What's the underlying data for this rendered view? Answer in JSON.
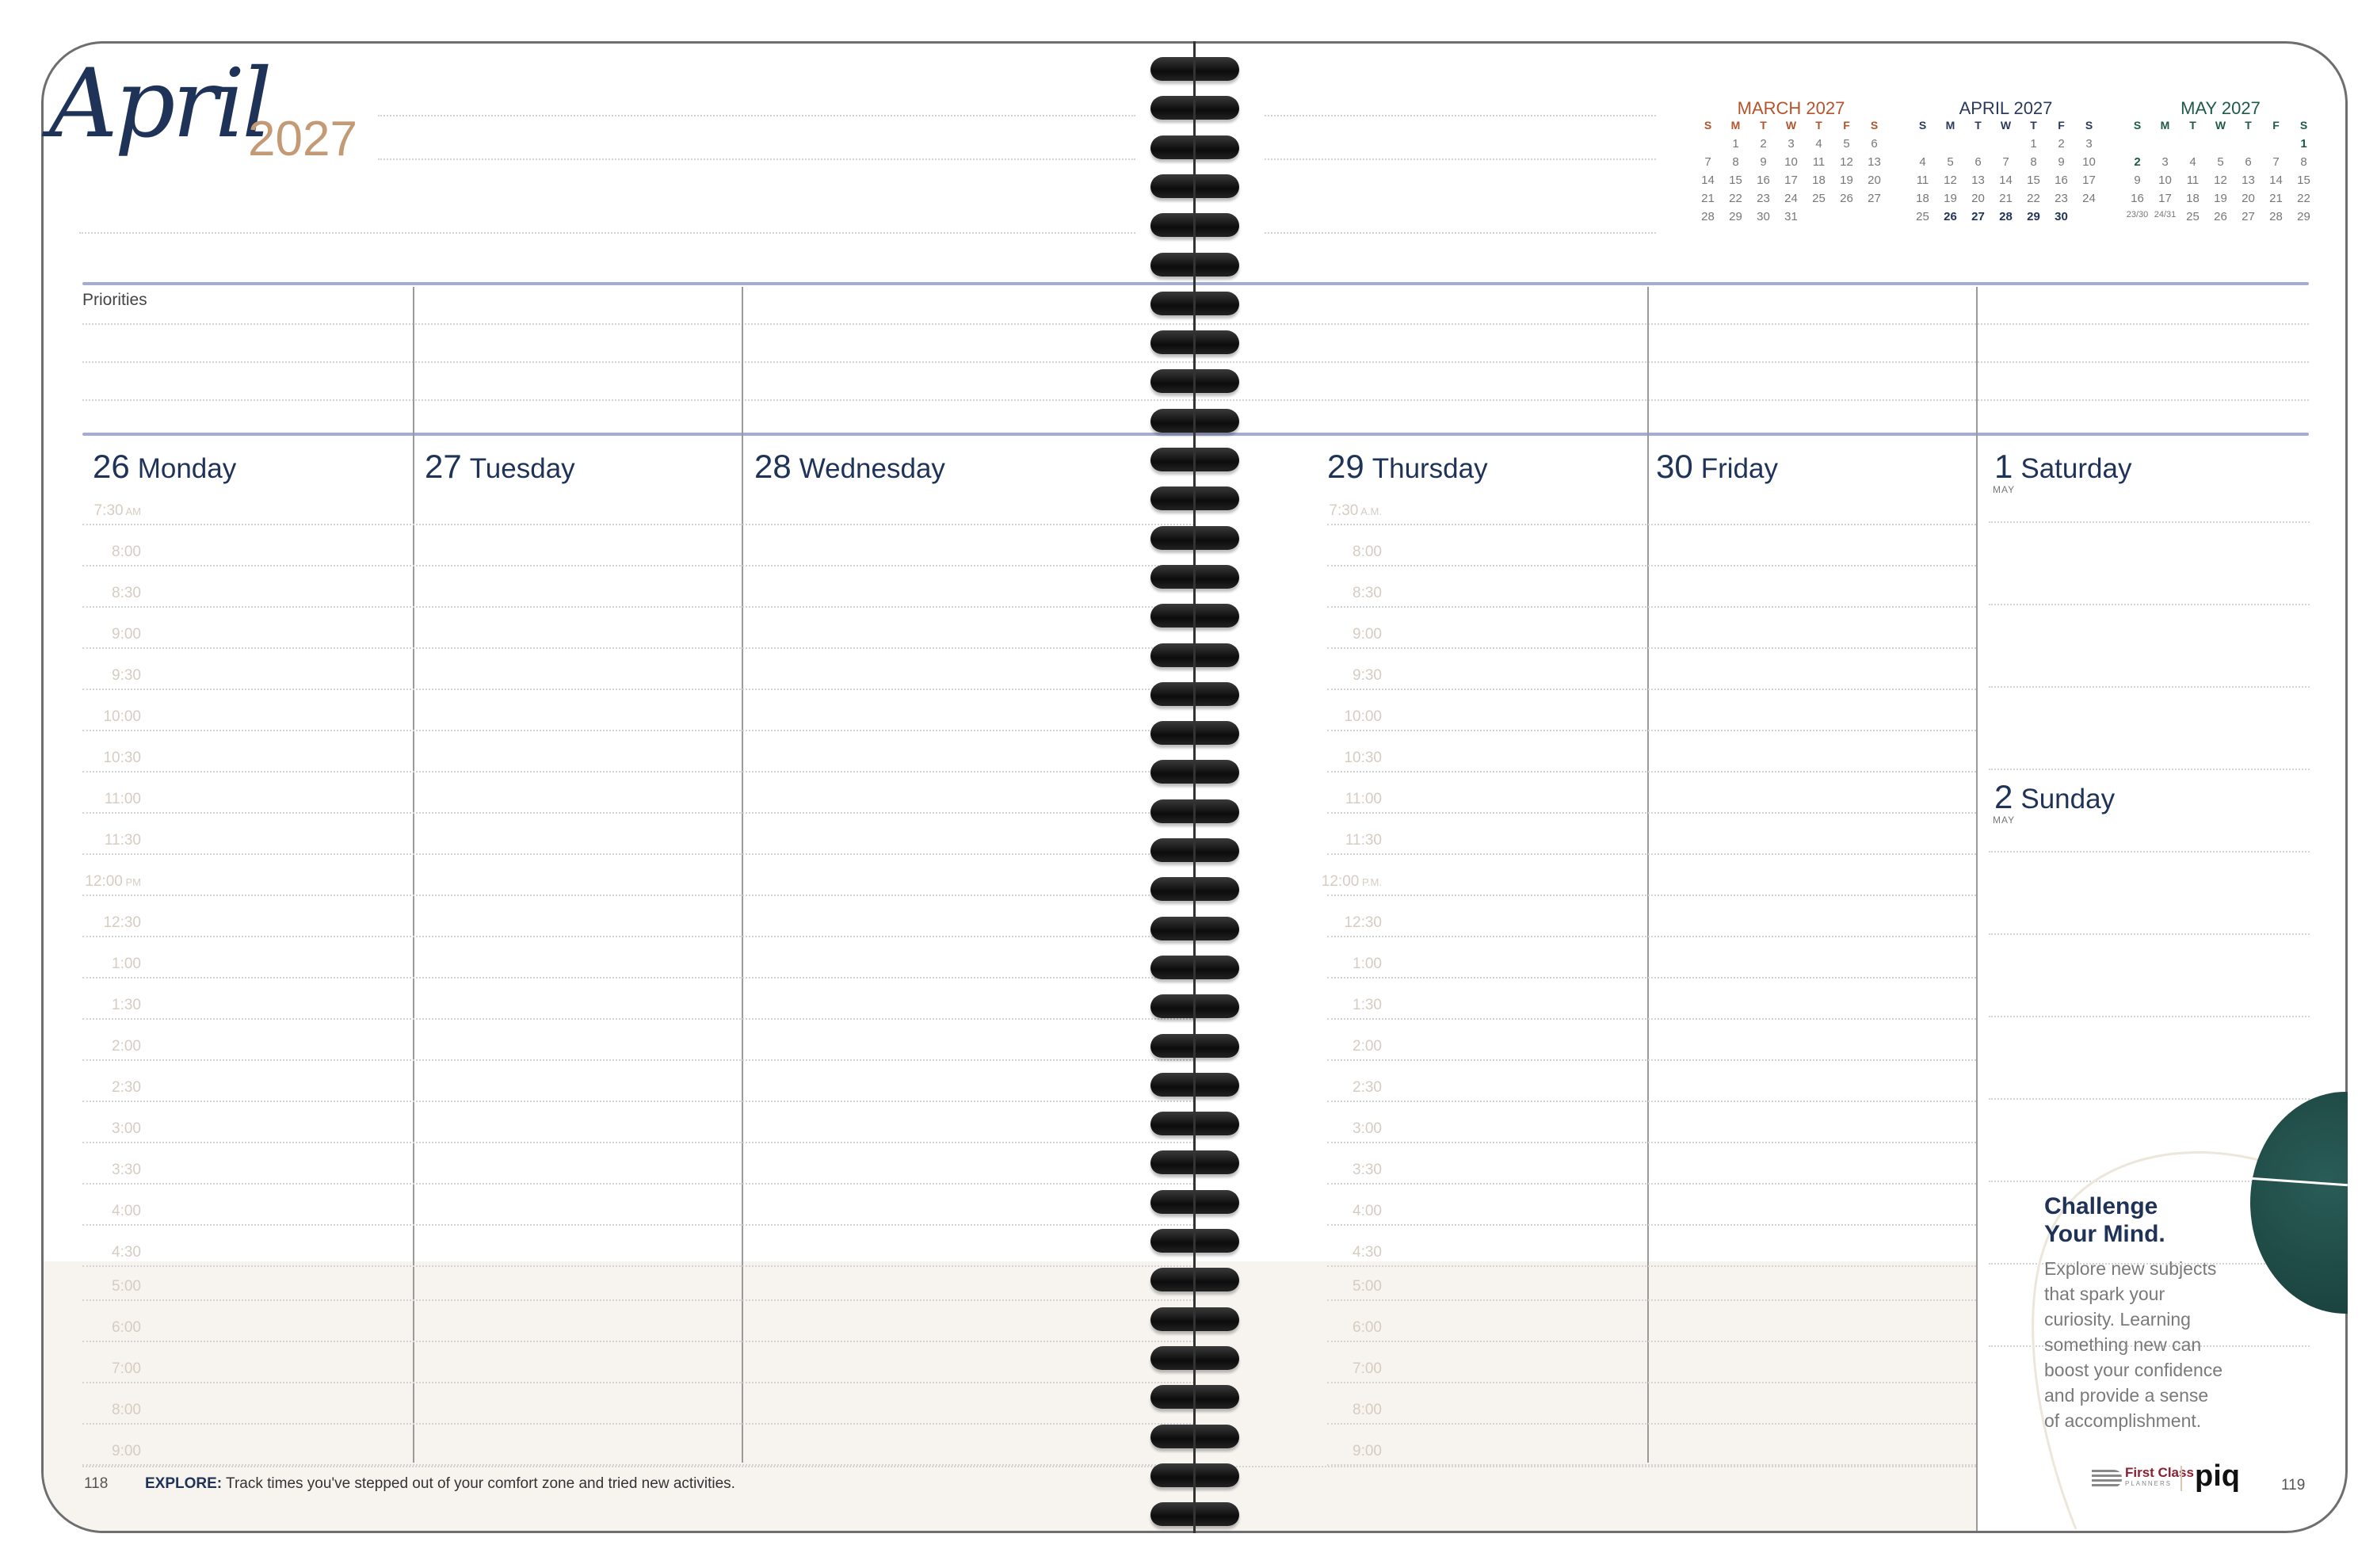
{
  "header": {
    "month_script": "April",
    "year": "2027"
  },
  "priorities_label": "Priorities",
  "mini_calendars": [
    {
      "title": "MARCH 2027",
      "color": "#b5532a",
      "weekdays": [
        "S",
        "M",
        "T",
        "W",
        "T",
        "F",
        "S"
      ],
      "weeks": [
        [
          "",
          "1",
          "2",
          "3",
          "4",
          "5",
          "6"
        ],
        [
          "7",
          "8",
          "9",
          "10",
          "11",
          "12",
          "13"
        ],
        [
          "14",
          "15",
          "16",
          "17",
          "18",
          "19",
          "20"
        ],
        [
          "21",
          "22",
          "23",
          "24",
          "25",
          "26",
          "27"
        ],
        [
          "28",
          "29",
          "30",
          "31",
          "",
          "",
          ""
        ]
      ],
      "bold": []
    },
    {
      "title": "APRIL 2027",
      "color": "#2a3a5e",
      "weekdays": [
        "S",
        "M",
        "T",
        "W",
        "T",
        "F",
        "S"
      ],
      "weeks": [
        [
          "",
          "",
          "",
          "",
          "1",
          "2",
          "3"
        ],
        [
          "4",
          "5",
          "6",
          "7",
          "8",
          "9",
          "10"
        ],
        [
          "11",
          "12",
          "13",
          "14",
          "15",
          "16",
          "17"
        ],
        [
          "18",
          "19",
          "20",
          "21",
          "22",
          "23",
          "24"
        ],
        [
          "25",
          "26",
          "27",
          "28",
          "29",
          "30",
          ""
        ]
      ],
      "bold": [
        "26",
        "27",
        "28",
        "29",
        "30"
      ]
    },
    {
      "title": "MAY 2027",
      "color": "#1e5a48",
      "weekdays": [
        "S",
        "M",
        "T",
        "W",
        "T",
        "F",
        "S"
      ],
      "weeks": [
        [
          "",
          "",
          "",
          "",
          "",
          "",
          "1"
        ],
        [
          "2",
          "3",
          "4",
          "5",
          "6",
          "7",
          "8"
        ],
        [
          "9",
          "10",
          "11",
          "12",
          "13",
          "14",
          "15"
        ],
        [
          "16",
          "17",
          "18",
          "19",
          "20",
          "21",
          "22"
        ],
        [
          "23/30",
          "24/31",
          "25",
          "26",
          "27",
          "28",
          "29"
        ]
      ],
      "bold": [
        "1",
        "2"
      ]
    }
  ],
  "days": [
    {
      "num": "26",
      "name": "Monday"
    },
    {
      "num": "27",
      "name": "Tuesday"
    },
    {
      "num": "28",
      "name": "Wednesday"
    },
    {
      "num": "29",
      "name": "Thursday"
    },
    {
      "num": "30",
      "name": "Friday"
    },
    {
      "num": "1",
      "name": "Saturday",
      "month": "MAY"
    },
    {
      "num": "2",
      "name": "Sunday",
      "month": "MAY"
    }
  ],
  "times_left": [
    "7:30|AM",
    "8:00",
    "8:30",
    "9:00",
    "9:30",
    "10:00",
    "10:30",
    "11:00",
    "11:30",
    "12:00|PM",
    "12:30",
    "1:00",
    "1:30",
    "2:00",
    "2:30",
    "3:00",
    "3:30",
    "4:00",
    "4:30",
    "5:00",
    "6:00",
    "7:00",
    "8:00",
    "9:00"
  ],
  "times_right": [
    "7:30|A.M.",
    "8:00",
    "8:30",
    "9:00",
    "9:30",
    "10:00",
    "10:30",
    "11:00",
    "11:30",
    "12:00|P.M.",
    "12:30",
    "1:00",
    "1:30",
    "2:00",
    "2:30",
    "3:00",
    "3:30",
    "4:00",
    "4:30",
    "5:00",
    "6:00",
    "7:00",
    "8:00",
    "9:00"
  ],
  "footer": {
    "left_page": "118",
    "explore_label": "EXPLORE:",
    "explore_text": " Track times you've stepped out of your comfort zone and tried new activities.",
    "right_page": "119"
  },
  "tip": {
    "title_line1": "Challenge",
    "title_line2": "Your Mind.",
    "body": [
      "Explore new subjects",
      "that spark your",
      "curiosity. Learning",
      "something new can",
      "boost your confidence",
      "and provide a sense",
      "of accomplishment."
    ]
  },
  "logos": {
    "first_class": "First Class",
    "planners": "PLANNERS",
    "piq": "piq"
  },
  "colors": {
    "navy": "#1f3358",
    "tan": "#c49a74",
    "band": "#a5acd0",
    "shade": "#f7f4ef",
    "blob": "#1d4a44"
  }
}
